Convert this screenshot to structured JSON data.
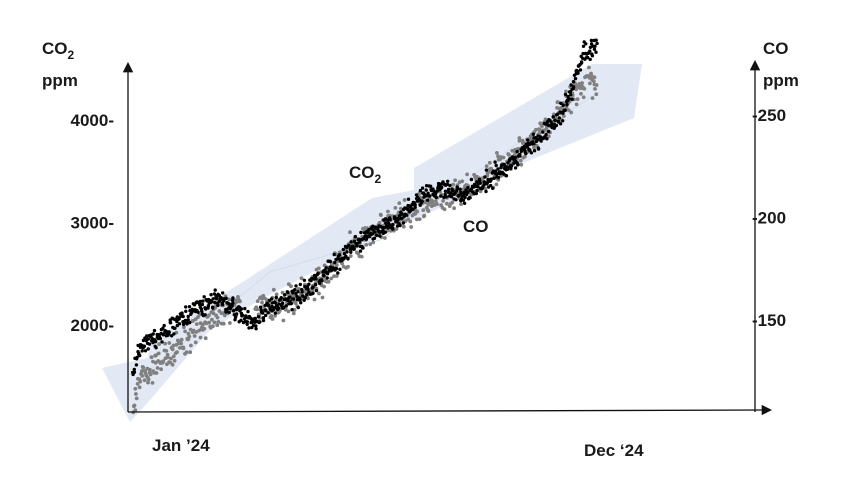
{
  "chart_data": {
    "type": "scatter",
    "x_axis": {
      "type": "date",
      "range": [
        "2024-01-01",
        "2024-12-31"
      ],
      "tick_labels": [
        "Jan ’24",
        "Dec ‘24"
      ]
    },
    "y_axis_left": {
      "label_line1": "CO",
      "label_subscript": "2",
      "label_line2": "ppm",
      "range": [
        1100,
        4500
      ],
      "ticks": [
        {
          "value": 2000,
          "label": "2000-"
        },
        {
          "value": 3000,
          "label": "3000-"
        },
        {
          "value": 4000,
          "label": "4000-"
        }
      ]
    },
    "y_axis_right": {
      "label_line1": "CO",
      "label_line2": "ppm",
      "range": [
        122.5,
        292.5
      ],
      "ticks": [
        {
          "value": 150,
          "label": "-150"
        },
        {
          "value": 200,
          "label": "-200"
        },
        {
          "value": 250,
          "label": "-250"
        }
      ]
    },
    "band": {
      "color": "#e3e9f4"
    },
    "series": [
      {
        "name": "CO",
        "name_subscript": "2",
        "axis": "left",
        "color": "#808080",
        "anchors": [
          [
            "2024-01-01",
            1200
          ],
          [
            "2024-01-05",
            1450
          ],
          [
            "2024-01-20",
            1650
          ],
          [
            "2024-02-10",
            1850
          ],
          [
            "2024-03-05",
            2100
          ],
          [
            "2024-03-20",
            2250
          ],
          [
            "2024-04-15",
            2150
          ],
          [
            "2024-05-15",
            2350
          ],
          [
            "2024-06-10",
            2700
          ],
          [
            "2024-07-01",
            2950
          ],
          [
            "2024-07-20",
            3050
          ],
          [
            "2024-08-05",
            3150
          ],
          [
            "2024-08-20",
            3250
          ],
          [
            "2024-09-05",
            3300
          ],
          [
            "2024-09-20",
            3400
          ],
          [
            "2024-10-10",
            3600
          ],
          [
            "2024-10-30",
            3850
          ],
          [
            "2024-11-20",
            4150
          ],
          [
            "2024-12-05",
            4370
          ],
          [
            "2024-12-15",
            4400
          ]
        ]
      },
      {
        "name": "CO",
        "axis": "right",
        "color": "#000000",
        "anchors": [
          [
            "2024-01-01",
            124
          ],
          [
            "2024-01-05",
            136
          ],
          [
            "2024-01-20",
            142
          ],
          [
            "2024-02-10",
            152
          ],
          [
            "2024-03-05",
            161
          ],
          [
            "2024-04-01",
            148
          ],
          [
            "2024-04-10",
            155
          ],
          [
            "2024-05-01",
            160
          ],
          [
            "2024-05-20",
            170
          ],
          [
            "2024-06-10",
            183
          ],
          [
            "2024-07-01",
            193
          ],
          [
            "2024-07-20",
            200
          ],
          [
            "2024-08-05",
            210
          ],
          [
            "2024-08-20",
            215
          ],
          [
            "2024-09-05",
            210
          ],
          [
            "2024-09-20",
            216
          ],
          [
            "2024-10-10",
            226
          ],
          [
            "2024-10-30",
            236
          ],
          [
            "2024-11-20",
            252
          ],
          [
            "2024-12-05",
            280
          ],
          [
            "2024-12-15",
            282
          ]
        ]
      }
    ]
  }
}
